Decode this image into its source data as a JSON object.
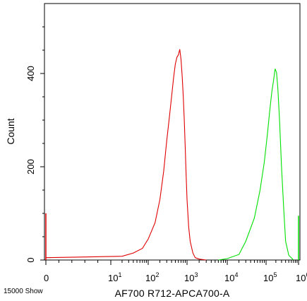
{
  "chart_data": {
    "type": "area",
    "title": "",
    "xlabel": "AF700 R712-APCA700-A",
    "ylabel": "Count",
    "corner_note": "15000 Show",
    "x_scale": "biexponential",
    "xlim": [
      0,
      1000000
    ],
    "ylim": [
      0,
      550
    ],
    "grid": false,
    "legend": "none",
    "y_ticks": [
      {
        "value": 0,
        "label": "0"
      },
      {
        "value": 200,
        "label": "200"
      },
      {
        "value": 400,
        "label": "400"
      }
    ],
    "x_ticks": [
      {
        "value": 0,
        "base": "0",
        "exp": ""
      },
      {
        "value": 10,
        "base": "10",
        "exp": "1"
      },
      {
        "value": 100,
        "base": "10",
        "exp": "2"
      },
      {
        "value": 1000,
        "base": "10",
        "exp": "3"
      },
      {
        "value": 10000,
        "base": "10",
        "exp": "4"
      },
      {
        "value": 100000,
        "base": "10",
        "exp": "5"
      },
      {
        "value": 1000000,
        "base": "10",
        "exp": "6"
      }
    ],
    "series": [
      {
        "color": "#e00000",
        "x": [
          0,
          20,
          40,
          70,
          100,
          150,
          200,
          250,
          300,
          350,
          400,
          450,
          500,
          550,
          600,
          650,
          700,
          750,
          800,
          850,
          900,
          950,
          1000,
          1100,
          1200,
          1400,
          1600,
          2000,
          3000
        ],
        "y": [
          5,
          8,
          15,
          25,
          45,
          80,
          130,
          190,
          255,
          305,
          350,
          390,
          420,
          435,
          440,
          452,
          430,
          395,
          350,
          300,
          240,
          180,
          130,
          70,
          40,
          15,
          5,
          2,
          0
        ]
      },
      {
        "color": "#00e000",
        "x": [
          6000,
          10000,
          20000,
          30000,
          50000,
          70000,
          90000,
          110000,
          130000,
          150000,
          170000,
          190000,
          210000,
          230000,
          260000,
          300000,
          350000,
          400000,
          500000,
          700000
        ],
        "y": [
          0,
          3,
          12,
          40,
          90,
          150,
          210,
          270,
          320,
          360,
          385,
          410,
          402,
          370,
          300,
          200,
          110,
          40,
          10,
          0
        ]
      }
    ],
    "spikes": [
      {
        "x": 0,
        "y": 100,
        "color": "#e00000"
      },
      {
        "x": 1000000,
        "y": 95,
        "color": "#00e000"
      }
    ]
  }
}
